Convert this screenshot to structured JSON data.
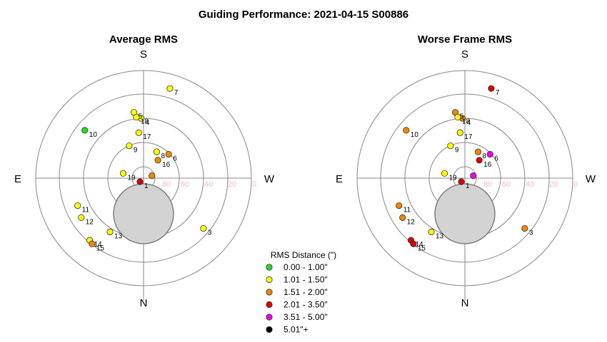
{
  "title": "Guiding Performance: 2021-04-15 S00886",
  "chart_data": [
    {
      "type": "scatter",
      "projection": "polar-sky",
      "title": "Average RMS",
      "directions": {
        "top": "S",
        "bottom": "N",
        "left": "E",
        "right": "W"
      },
      "radial_tick_labels": [
        "0",
        "20",
        "40",
        "60",
        "80"
      ],
      "radial_range": [
        0,
        90
      ],
      "grid": true,
      "points": [
        {
          "label": "1",
          "x": -3,
          "y": -3,
          "category": "2.01 - 3.50\""
        },
        {
          "label": "3",
          "x": 50,
          "y": -42,
          "category": "1.01 - 1.50\""
        },
        {
          "label": "4",
          "x": -2,
          "y": 50,
          "category": "1.01 - 1.50\""
        },
        {
          "label": "5",
          "x": -8,
          "y": 55,
          "category": "1.01 - 1.50\""
        },
        {
          "label": "6",
          "x": 21,
          "y": 20,
          "category": "1.51 - 2.00\""
        },
        {
          "label": "7",
          "x": 22,
          "y": 75,
          "category": "1.01 - 1.50\""
        },
        {
          "label": "8",
          "x": 11,
          "y": 22,
          "category": "1.01 - 1.50\""
        },
        {
          "label": "9",
          "x": -12,
          "y": 27,
          "category": "1.01 - 1.50\""
        },
        {
          "label": "10",
          "x": -49,
          "y": 40,
          "category": "0.00 - 1.00\""
        },
        {
          "label": "11",
          "x": -55,
          "y": -23,
          "category": "1.01 - 1.50\""
        },
        {
          "label": "12",
          "x": -52,
          "y": -33,
          "category": "1.01 - 1.50\""
        },
        {
          "label": "13",
          "x": -28,
          "y": -45,
          "category": "1.01 - 1.50\""
        },
        {
          "label": "14",
          "x": -45,
          "y": -52,
          "category": "1.01 - 1.50\""
        },
        {
          "label": "15",
          "x": -43,
          "y": -55,
          "category": "1.51 - 2.00\""
        },
        {
          "label": "16",
          "x": 12,
          "y": 15,
          "category": "1.51 - 2.00\""
        },
        {
          "label": "17",
          "x": -4,
          "y": 38,
          "category": "1.01 - 1.50\""
        },
        {
          "label": "18",
          "x": -6,
          "y": 51,
          "category": "1.01 - 1.50\""
        },
        {
          "label": "19",
          "x": -17,
          "y": 4,
          "category": "1.01 - 1.50\""
        },
        {
          "label": "",
          "x": 7,
          "y": 2,
          "category": "1.51 - 2.00\""
        }
      ]
    },
    {
      "type": "scatter",
      "projection": "polar-sky",
      "title": "Worse Frame RMS",
      "directions": {
        "top": "S",
        "bottom": "N",
        "left": "E",
        "right": "W"
      },
      "radial_tick_labels": [
        "0",
        "20",
        "40",
        "60",
        "80"
      ],
      "radial_range": [
        0,
        90
      ],
      "grid": true,
      "points": [
        {
          "label": "1",
          "x": -3,
          "y": -3,
          "category": "2.01 - 3.50\""
        },
        {
          "label": "3",
          "x": 50,
          "y": -42,
          "category": "1.51 - 2.00\""
        },
        {
          "label": "4",
          "x": -2,
          "y": 50,
          "category": "1.51 - 2.00\""
        },
        {
          "label": "5",
          "x": -8,
          "y": 55,
          "category": "1.51 - 2.00\""
        },
        {
          "label": "6",
          "x": 21,
          "y": 20,
          "category": "3.51 - 5.00\""
        },
        {
          "label": "7",
          "x": 22,
          "y": 75,
          "category": "2.01 - 3.50\""
        },
        {
          "label": "8",
          "x": 11,
          "y": 22,
          "category": "1.51 - 2.00\""
        },
        {
          "label": "9",
          "x": -12,
          "y": 27,
          "category": "1.01 - 1.50\""
        },
        {
          "label": "10",
          "x": -49,
          "y": 40,
          "category": "1.51 - 2.00\""
        },
        {
          "label": "11",
          "x": -55,
          "y": -23,
          "category": "1.51 - 2.00\""
        },
        {
          "label": "12",
          "x": -52,
          "y": -33,
          "category": "1.51 - 2.00\""
        },
        {
          "label": "13",
          "x": -28,
          "y": -45,
          "category": "1.01 - 1.50\""
        },
        {
          "label": "14",
          "x": -45,
          "y": -52,
          "category": "2.01 - 3.50\""
        },
        {
          "label": "15",
          "x": -43,
          "y": -55,
          "category": "2.01 - 3.50\""
        },
        {
          "label": "16",
          "x": 12,
          "y": 15,
          "category": "2.01 - 3.50\""
        },
        {
          "label": "17",
          "x": -4,
          "y": 38,
          "category": "1.01 - 1.50\""
        },
        {
          "label": "18",
          "x": -6,
          "y": 51,
          "category": "1.01 - 1.50\""
        },
        {
          "label": "19",
          "x": -17,
          "y": 4,
          "category": "1.01 - 1.50\""
        },
        {
          "label": "",
          "x": 7,
          "y": 2,
          "category": "3.51 - 5.00\""
        }
      ]
    }
  ],
  "legend": {
    "title": "RMS Distance (\")",
    "placement": "bottom-center",
    "entries": [
      {
        "label": "0.00 - 1.00\"",
        "color": "#22dd22"
      },
      {
        "label": "1.01 - 1.50\"",
        "color": "#ffff00"
      },
      {
        "label": "1.51 - 2.00\"",
        "color": "#ee8800"
      },
      {
        "label": "2.01 - 3.50\"",
        "color": "#dd0000"
      },
      {
        "label": "3.51 - 5.00\"",
        "color": "#ee00ee"
      },
      {
        "label": "5.01\"+",
        "color": "#000000"
      }
    ]
  },
  "colors": {
    "ring": "#888888",
    "crosshair": "#888888",
    "radial_tick": "#f4b8c8",
    "obstruction_fill": "#d3d3d3",
    "obstruction_stroke": "#808080"
  }
}
